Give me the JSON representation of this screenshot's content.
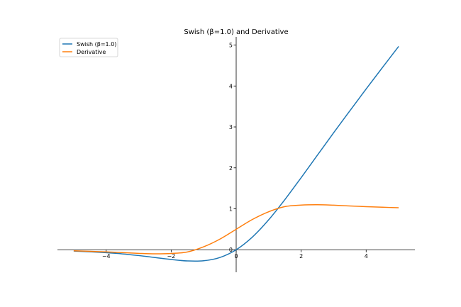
{
  "chart_data": {
    "type": "line",
    "title": "Swish (β=1.0) and Derivative",
    "xlabel": "",
    "ylabel": "",
    "xlim": [
      -5.5,
      5.5
    ],
    "ylim": [
      -0.55,
      5.2
    ],
    "grid": false,
    "legend_position": "top-left",
    "spines": "centered-at-origin",
    "x_ticks": [
      {
        "value": -4,
        "label": "−4"
      },
      {
        "value": -2,
        "label": "−2"
      },
      {
        "value": 0,
        "label": "0"
      },
      {
        "value": 2,
        "label": "2"
      },
      {
        "value": 4,
        "label": "4"
      }
    ],
    "y_ticks": [
      {
        "value": 0,
        "label": "0"
      },
      {
        "value": 1,
        "label": "1"
      },
      {
        "value": 2,
        "label": "2"
      },
      {
        "value": 3,
        "label": "3"
      },
      {
        "value": 4,
        "label": "4"
      },
      {
        "value": 5,
        "label": "5"
      }
    ],
    "x": [
      -5.0,
      -4.5,
      -4.0,
      -3.5,
      -3.0,
      -2.5,
      -2.0,
      -1.5,
      -1.0,
      -0.5,
      0.0,
      0.5,
      1.0,
      1.5,
      2.0,
      2.5,
      3.0,
      3.5,
      4.0,
      4.5,
      5.0
    ],
    "series": [
      {
        "name": "Swish (β=1.0)",
        "color": "#1f77b4",
        "values": [
          -0.033,
          -0.05,
          -0.072,
          -0.101,
          -0.142,
          -0.19,
          -0.238,
          -0.274,
          -0.269,
          -0.189,
          0.0,
          0.311,
          0.731,
          1.226,
          1.762,
          2.31,
          2.858,
          3.395,
          3.928,
          4.45,
          4.967
        ]
      },
      {
        "name": "Derivative",
        "color": "#ff7f0e",
        "values": [
          -0.027,
          -0.038,
          -0.053,
          -0.07,
          -0.088,
          -0.1,
          -0.091,
          -0.054,
          0.072,
          0.26,
          0.5,
          0.74,
          0.928,
          1.054,
          1.091,
          1.1,
          1.088,
          1.07,
          1.053,
          1.038,
          1.027
        ]
      }
    ]
  }
}
